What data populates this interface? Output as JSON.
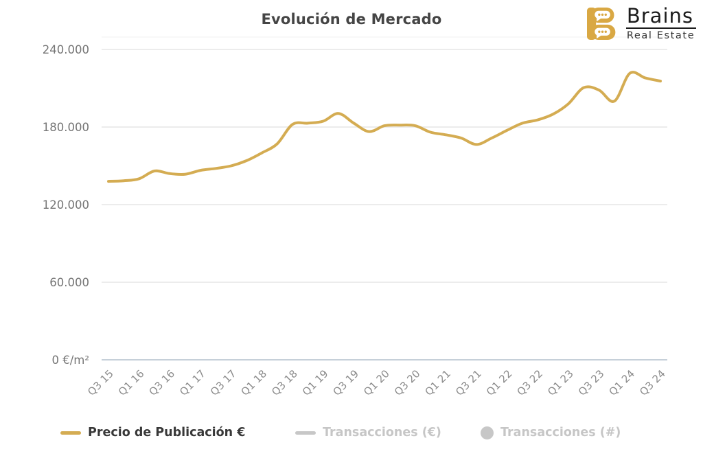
{
  "header": {
    "title": "Evolución de Mercado"
  },
  "logo": {
    "name": "Brains",
    "subtitle": "Real Estate",
    "gold": "#D9A843",
    "text_color": "#1c1c1c"
  },
  "legend": {
    "items": [
      {
        "label": "Precio de Publicación €",
        "marker": "line",
        "color": "#D4AC52",
        "active": true
      },
      {
        "label": "Transacciones (€)",
        "marker": "line",
        "color": "#C7C7C7",
        "active": false
      },
      {
        "label": "Transacciones (#)",
        "marker": "circle",
        "color": "#C7C7C7",
        "active": false
      }
    ]
  },
  "chart_data": {
    "type": "line",
    "title": "Evolución de Mercado",
    "xlabel": "",
    "ylabel": "€/m²",
    "ylim": [
      0,
      240000
    ],
    "grid": true,
    "legend_position": "bottom",
    "y_ticks": [
      {
        "value": 240000,
        "label": "240.000"
      },
      {
        "value": 180000,
        "label": "180.000"
      },
      {
        "value": 120000,
        "label": "120.000"
      },
      {
        "value": 60000,
        "label": "60.000"
      },
      {
        "value": 0,
        "label": "0 €/m²"
      }
    ],
    "x_tick_labels_visible": [
      "Q3 15",
      "Q1 16",
      "Q3 16",
      "Q1 17",
      "Q3 17",
      "Q1 18",
      "Q3 18",
      "Q1 19",
      "Q3 19",
      "Q1 20",
      "Q3 20",
      "Q1 21",
      "Q3 21",
      "Q1 22",
      "Q3 22",
      "Q1 23",
      "Q3 23",
      "Q1 24",
      "Q3 24"
    ],
    "series": [
      {
        "name": "Precio de Publicación €",
        "color": "#D4AC52",
        "x": [
          "Q3 15",
          "Q4 15",
          "Q1 16",
          "Q2 16",
          "Q3 16",
          "Q4 16",
          "Q1 17",
          "Q2 17",
          "Q3 17",
          "Q4 17",
          "Q1 18",
          "Q2 18",
          "Q3 18",
          "Q4 18",
          "Q1 19",
          "Q2 19",
          "Q3 19",
          "Q4 19",
          "Q1 20",
          "Q2 20",
          "Q3 20",
          "Q4 20",
          "Q1 21",
          "Q2 21",
          "Q3 21",
          "Q4 21",
          "Q1 22",
          "Q2 22",
          "Q3 22",
          "Q4 22",
          "Q1 23",
          "Q2 23",
          "Q3 23",
          "Q4 23",
          "Q1 24",
          "Q2 24",
          "Q3 24"
        ],
        "values": [
          138000,
          138500,
          140000,
          146000,
          144000,
          143500,
          146500,
          148000,
          150000,
          154000,
          160000,
          167000,
          182000,
          183000,
          184500,
          190500,
          183000,
          176500,
          181000,
          181500,
          181000,
          176000,
          174000,
          171500,
          166500,
          171500,
          177500,
          183000,
          185500,
          190000,
          198000,
          210500,
          208500,
          200000,
          221500,
          218000,
          215500
        ]
      }
    ],
    "colors": {
      "gridline": "#ececec",
      "baseline": "#c6d0d9",
      "y_label": "#757575",
      "x_label": "#8b8b8b"
    }
  }
}
